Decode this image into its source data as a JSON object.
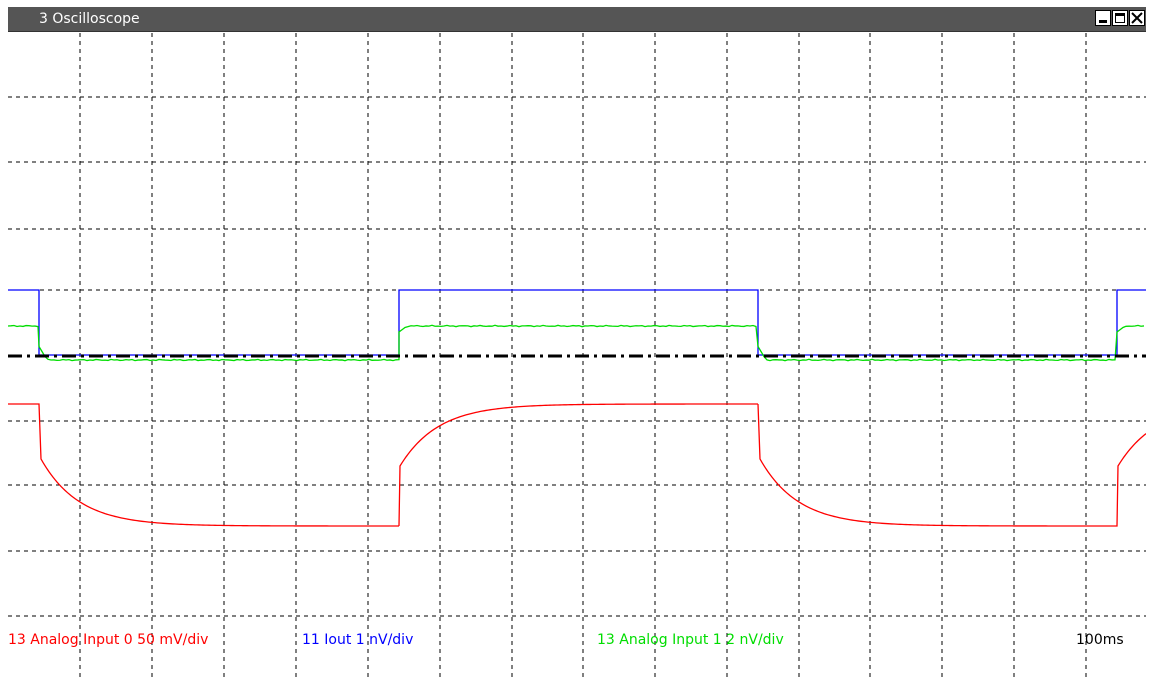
{
  "window": {
    "title": "3 Oscilloscope"
  },
  "controls": {
    "minimize": "minimize-icon",
    "maximize": "maximize-icon",
    "close": "close-icon"
  },
  "legend": {
    "channel_red": "13 Analog Input 0 50 mV/div",
    "channel_blue": "11 Iout 1 nV/div",
    "channel_green": "13 Analog Input 1 2 nV/div",
    "timebase": "100ms"
  },
  "colors": {
    "red_trace": "#ff0000",
    "blue_trace": "#0000ff",
    "green_trace": "#00dd00",
    "reference": "#000000",
    "grid": "#000000",
    "titlebar": "#555555"
  },
  "grid": {
    "vertical_divisions": 16,
    "horizontal_divisions": 9
  }
}
